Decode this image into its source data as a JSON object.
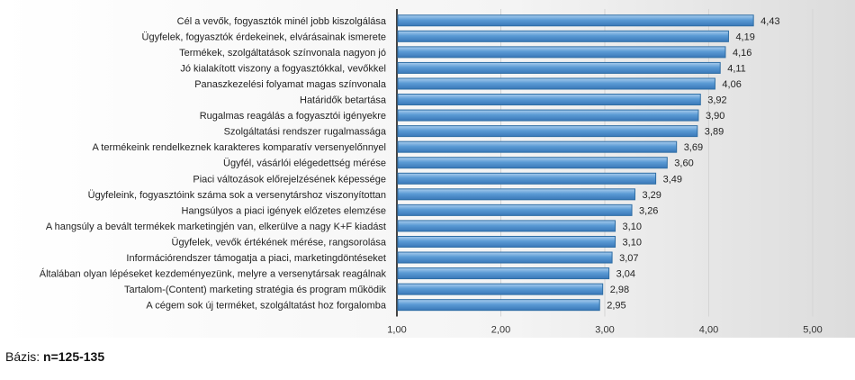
{
  "chart_data": {
    "type": "bar",
    "orientation": "horizontal",
    "categories": [
      "Cél a vevők, fogyasztók minél jobb kiszolgálása",
      "Ügyfelek, fogyasztók érdekeinek, elvárásainak ismerete",
      "Termékek, szolgáltatások színvonala nagyon jó",
      "Jó kialakított viszony a fogyasztókkal, vevőkkel",
      "Panaszkezelési folyamat magas színvonala",
      "Határidők betartása",
      "Rugalmas reagálás a fogyasztói igényekre",
      "Szolgáltatási rendszer rugalmassága",
      "A termékeink rendelkeznek karakteres komparatív versenyelőnnyel",
      "Ügyfél, vásárlói elégedettség mérése",
      "Piaci változások előrejelzésének képessége",
      "Ügyfeleink, fogyasztóink száma sok a versenytárshoz viszonyítottan",
      "Hangsúlyos a piaci igények előzetes elemzése",
      "A hangsúly a bevált termékek marketingjén van, elkerülve a nagy K+F kiadást",
      "Ügyfelek, vevők értékének mérése, rangsorolása",
      "Információrendszer támogatja a piaci, marketingdöntéseket",
      "Általában olyan lépéseket kezdeményezünk, melyre a versenytársak reagálnak",
      "Tartalom-(Content) marketing stratégia és program működik",
      "A cégem sok új terméket, szolgáltatást hoz forgalomba"
    ],
    "values": [
      4.43,
      4.19,
      4.16,
      4.11,
      4.06,
      3.92,
      3.9,
      3.89,
      3.69,
      3.6,
      3.49,
      3.29,
      3.26,
      3.1,
      3.1,
      3.07,
      3.04,
      2.98,
      2.95
    ],
    "value_labels": [
      "4,43",
      "4,19",
      "4,16",
      "4,11",
      "4,06",
      "3,92",
      "3,90",
      "3,89",
      "3,69",
      "3,60",
      "3,49",
      "3,29",
      "3,26",
      "3,10",
      "3,10",
      "3,07",
      "3,04",
      "2,98",
      "2,95"
    ],
    "xlim": [
      1,
      5
    ],
    "x_ticks": [
      1,
      2,
      3,
      4,
      5
    ],
    "x_tick_labels": [
      "1,00",
      "2,00",
      "3,00",
      "4,00",
      "5,00"
    ],
    "grid": "vertical",
    "bar_color": "#5b9bd5",
    "bar_edge_color": "#2e6da4",
    "legend": "none"
  },
  "footer": {
    "base_label": "Bázis:",
    "base_value": "n=125-135"
  }
}
